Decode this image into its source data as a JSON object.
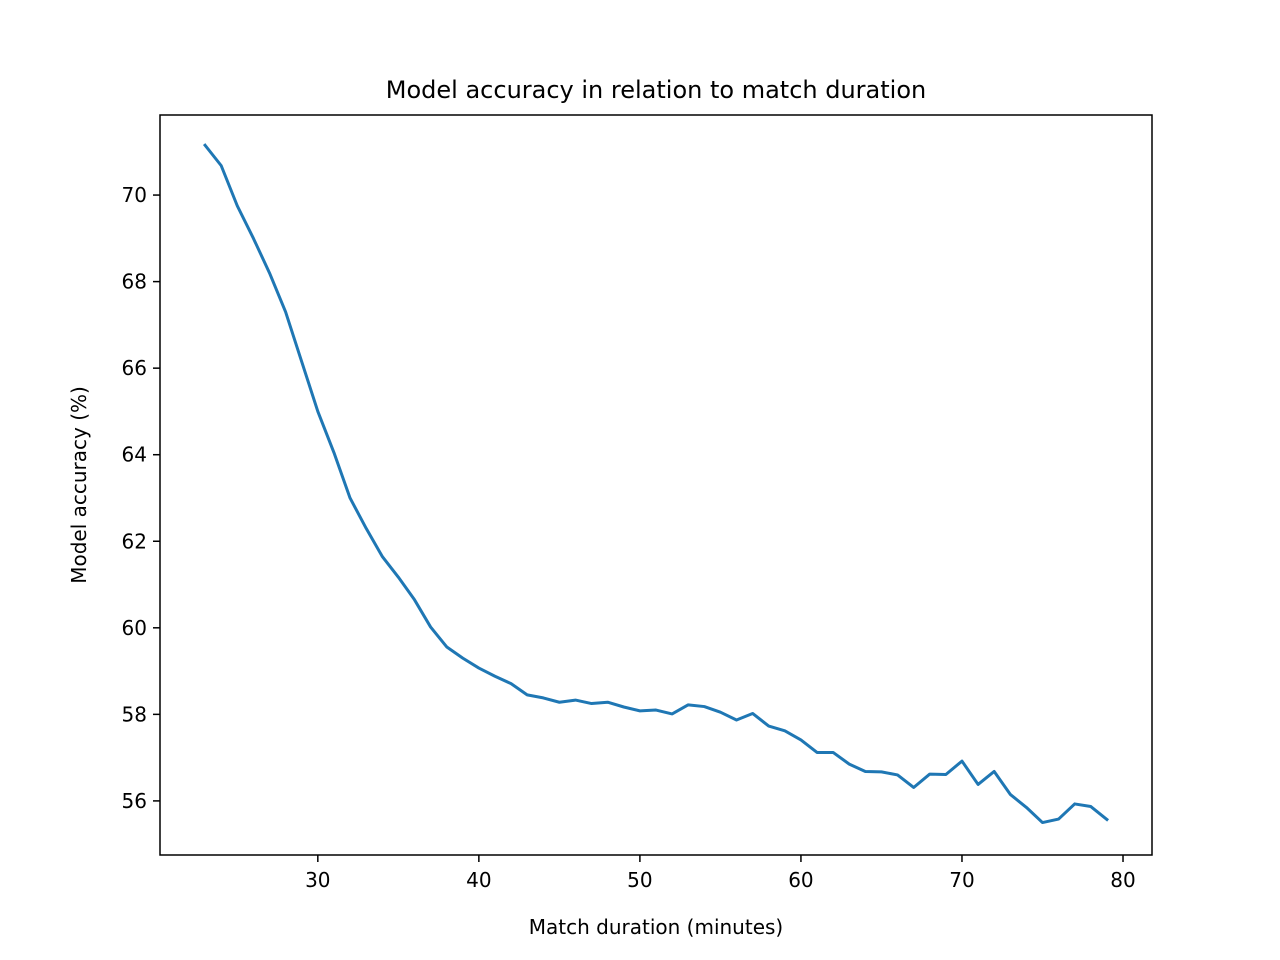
{
  "chart_data": {
    "type": "line",
    "title": "Model accuracy in relation to match duration",
    "xlabel": "Match duration (minutes)",
    "ylabel": "Model accuracy (%)",
    "xlim": [
      20.2,
      81.8
    ],
    "ylim": [
      54.75,
      71.85
    ],
    "xticks": [
      30,
      40,
      50,
      60,
      70,
      80
    ],
    "yticks": [
      56,
      58,
      60,
      62,
      64,
      66,
      68,
      70
    ],
    "grid": false,
    "line_color": "#1f77b4",
    "series": [
      {
        "x": [
          23,
          24,
          25,
          26,
          27,
          28,
          29,
          30,
          31,
          32,
          33,
          34,
          35,
          36,
          37,
          38,
          39,
          40,
          41,
          42,
          43,
          44,
          45,
          46,
          47,
          48,
          49,
          50,
          51,
          52,
          53,
          54,
          55,
          56,
          57,
          58,
          59,
          60,
          61,
          62,
          63,
          64,
          65,
          66,
          67,
          68,
          69,
          70,
          71,
          72,
          73,
          74,
          75,
          76,
          77,
          78,
          79
        ],
        "values": [
          71.15,
          70.68,
          69.75,
          69.0,
          68.2,
          67.3,
          66.15,
          65.0,
          64.05,
          63.0,
          62.3,
          61.65,
          61.17,
          60.65,
          60.02,
          59.56,
          59.3,
          59.07,
          58.88,
          58.71,
          58.45,
          58.38,
          58.28,
          58.33,
          58.25,
          58.28,
          58.17,
          58.08,
          58.1,
          58.01,
          58.22,
          58.18,
          58.05,
          57.87,
          58.02,
          57.73,
          57.62,
          57.41,
          57.12,
          57.12,
          56.85,
          56.68,
          56.67,
          56.6,
          56.31,
          56.62,
          56.61,
          56.92,
          56.38,
          56.68,
          56.15,
          55.85,
          55.5,
          55.58,
          55.93,
          55.87,
          55.57
        ]
      }
    ]
  }
}
